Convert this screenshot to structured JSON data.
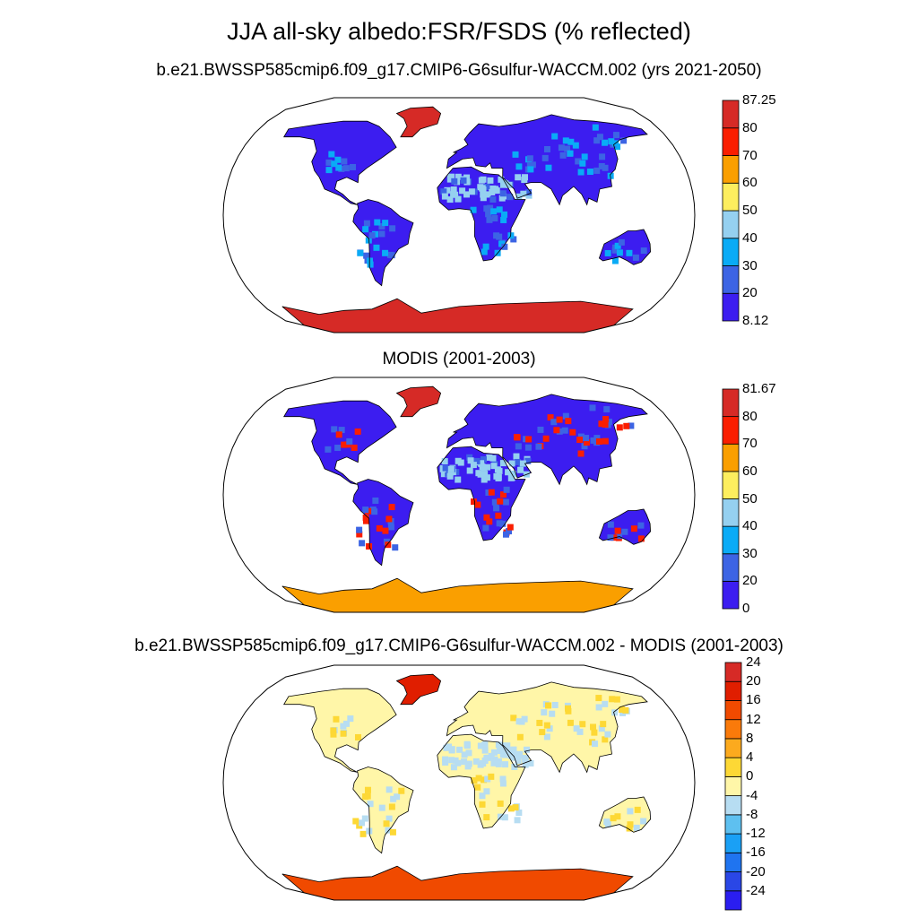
{
  "title": "JJA all-sky albedo:FSR/FSDS (% reflected)",
  "panels": [
    {
      "id": "model",
      "title": "b.e21.BWSSP585cmip6.f09_g17.CMIP6-G6sulfur-WACCM.002 (yrs 2021-2050)",
      "colorbar": {
        "colors": [
          "#3c1df0",
          "#3c64e4",
          "#0aabf6",
          "#95d0f0",
          "#fdee5e",
          "#fa9f00",
          "#fa1e00",
          "#d62a26"
        ],
        "labels": [
          "8.12",
          "20",
          "30",
          "40",
          "50",
          "60",
          "70",
          "80",
          "87.25"
        ]
      }
    },
    {
      "id": "obs",
      "title": "MODIS (2001-2003)",
      "colorbar": {
        "colors": [
          "#3c1df0",
          "#3c64e4",
          "#0aabf6",
          "#95d0f0",
          "#fdee5e",
          "#fa9f00",
          "#fa1e00",
          "#d62a26"
        ],
        "labels": [
          "0",
          "20",
          "30",
          "40",
          "50",
          "60",
          "70",
          "80",
          "81.67"
        ]
      }
    },
    {
      "id": "diff",
      "title": "b.e21.BWSSP585cmip6.f09_g17.CMIP6-G6sulfur-WACCM.002 - MODIS (2001-2003)",
      "colorbar": {
        "colors": [
          "#2a1ef0",
          "#2a47e6",
          "#1f74f0",
          "#1aa0f5",
          "#5ec0f0",
          "#b7ddf2",
          "#fff6a8",
          "#fdd835",
          "#fcaa1e",
          "#fa7a0a",
          "#f04a00",
          "#e01e00",
          "#d62a26"
        ],
        "labels": [
          "-24",
          "-20",
          "-16",
          "-12",
          "-8",
          "-4",
          "0",
          "4",
          "8",
          "12",
          "16",
          "20",
          "24"
        ]
      }
    }
  ]
}
